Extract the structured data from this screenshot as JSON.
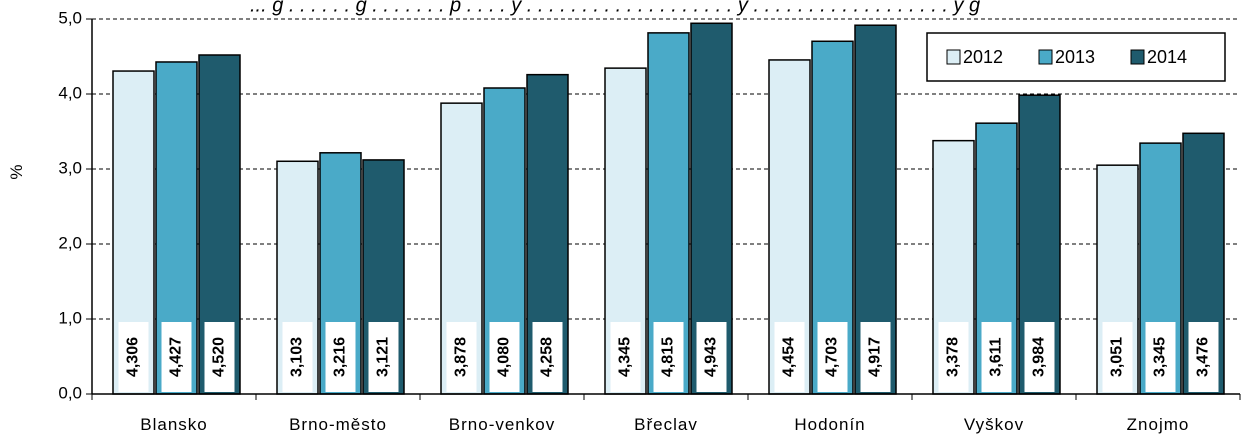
{
  "chart_data": {
    "type": "bar",
    "title": "... g . . . . . . g . . . . . . . p . . . . y . . . . . . . . . . . . . . . . . . . y . . . . . . . . . . . . . . . . . . y g",
    "ylabel": "%",
    "xlabel": "",
    "ylim": [
      0,
      5
    ],
    "yticks": [
      "0,0",
      "1,0",
      "2,0",
      "3,0",
      "4,0",
      "5,0"
    ],
    "grid": true,
    "legend_position": "top-right",
    "categories": [
      "Blansko",
      "Brno-město",
      "Brno-venkov",
      "Břeclav",
      "Hodonín",
      "Vyškov",
      "Znojmo"
    ],
    "series": [
      {
        "name": "2012",
        "color": "#dceef5",
        "values": [
          4.306,
          3.103,
          3.878,
          4.345,
          4.454,
          3.378,
          3.051
        ],
        "labels": [
          "4,306",
          "3,103",
          "3,878",
          "4,345",
          "4,454",
          "3,378",
          "3,051"
        ]
      },
      {
        "name": "2013",
        "color": "#4aaac8",
        "values": [
          4.427,
          3.216,
          4.08,
          4.815,
          4.703,
          3.611,
          3.345
        ],
        "labels": [
          "4,427",
          "3,216",
          "4,080",
          "4,815",
          "4,703",
          "3,611",
          "3,345"
        ]
      },
      {
        "name": "2014",
        "color": "#1f5b6d",
        "values": [
          4.52,
          3.121,
          4.258,
          4.943,
          4.917,
          3.984,
          3.476
        ],
        "labels": [
          "4,520",
          "3,121",
          "4,258",
          "4,943",
          "4,917",
          "3,984",
          "3,476"
        ]
      }
    ]
  }
}
